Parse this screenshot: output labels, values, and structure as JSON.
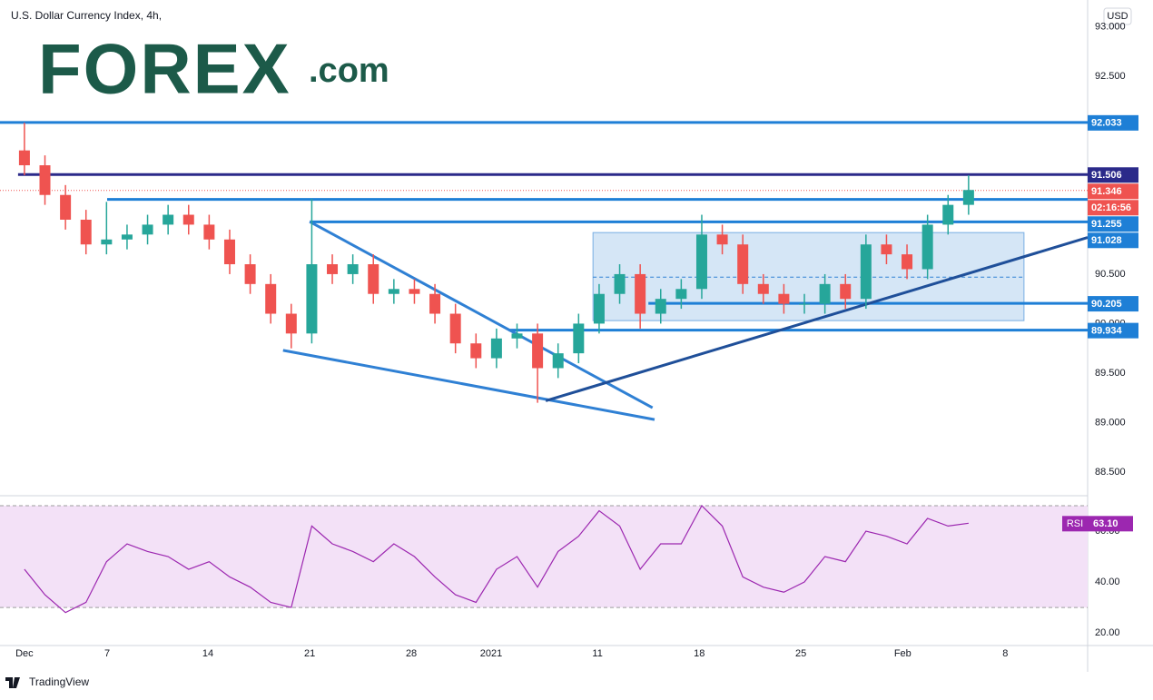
{
  "header": {
    "title": "U.S. Dollar Currency Index, 4h,",
    "currency": "USD",
    "logo": {
      "main": "FOREX",
      "suffix": ".com"
    }
  },
  "footer": {
    "brand": "TradingView"
  },
  "chart_data": [
    {
      "type": "candlestick",
      "x": [
        0,
        1,
        2,
        3,
        4,
        5,
        6,
        7,
        8,
        9,
        10,
        11,
        12,
        13,
        14,
        15,
        16,
        17,
        18,
        19,
        20,
        21,
        22,
        23,
        24,
        25,
        26,
        27,
        28,
        29,
        30,
        31,
        32,
        33,
        34,
        35,
        36,
        37,
        38,
        39,
        40,
        41,
        42,
        43,
        44,
        45,
        46
      ],
      "open": [
        91.75,
        91.6,
        91.3,
        91.05,
        90.8,
        90.85,
        90.9,
        91.0,
        91.1,
        91.0,
        90.85,
        90.6,
        90.4,
        90.1,
        89.9,
        90.6,
        90.5,
        90.6,
        90.3,
        90.35,
        90.3,
        90.1,
        89.8,
        89.65,
        89.85,
        89.9,
        89.55,
        89.7,
        90.0,
        90.3,
        90.5,
        90.1,
        90.25,
        90.35,
        90.9,
        90.8,
        90.4,
        90.3,
        90.2,
        90.2,
        90.4,
        90.25,
        90.8,
        90.7,
        90.55,
        91.0,
        91.2
      ],
      "high": [
        92.03,
        91.7,
        91.4,
        91.15,
        91.23,
        91.0,
        91.1,
        91.2,
        91.2,
        91.1,
        90.95,
        90.7,
        90.5,
        90.2,
        91.26,
        90.7,
        90.7,
        90.7,
        90.45,
        90.45,
        90.4,
        90.2,
        89.9,
        89.95,
        90.0,
        90.0,
        89.8,
        90.1,
        90.4,
        90.6,
        90.6,
        90.35,
        90.45,
        91.1,
        91.0,
        90.9,
        90.5,
        90.4,
        90.3,
        90.5,
        90.5,
        90.9,
        90.9,
        90.8,
        91.1,
        91.3,
        91.5
      ],
      "low": [
        91.5,
        91.2,
        90.95,
        90.7,
        90.7,
        90.75,
        90.8,
        90.9,
        90.9,
        90.75,
        90.5,
        90.3,
        90.0,
        89.75,
        89.8,
        90.4,
        90.4,
        90.2,
        90.2,
        90.2,
        90.0,
        89.7,
        89.55,
        89.55,
        89.75,
        89.2,
        89.45,
        89.6,
        89.9,
        90.2,
        89.95,
        90.0,
        90.15,
        90.25,
        90.7,
        90.3,
        90.2,
        90.1,
        90.1,
        90.1,
        90.15,
        90.15,
        90.6,
        90.45,
        90.45,
        90.9,
        91.1
      ],
      "close": [
        91.6,
        91.3,
        91.05,
        90.8,
        90.85,
        90.9,
        91.0,
        91.1,
        91.0,
        90.85,
        90.6,
        90.4,
        90.1,
        89.9,
        90.6,
        90.5,
        90.6,
        90.3,
        90.35,
        90.3,
        90.1,
        89.8,
        89.65,
        89.85,
        89.9,
        89.55,
        89.7,
        90.0,
        90.3,
        90.5,
        90.1,
        90.25,
        90.35,
        90.9,
        90.8,
        90.4,
        90.3,
        90.2,
        90.2,
        90.4,
        90.25,
        90.8,
        90.7,
        90.55,
        91.0,
        91.2,
        91.35
      ],
      "up_color": "#26a69a",
      "down_color": "#ef5350",
      "xlim": [
        -1.19,
        51.8
      ],
      "ylim": [
        88.27,
        93.27
      ],
      "yticks": [
        {
          "value": 93,
          "label": "93.000"
        },
        {
          "value": 92.5,
          "label": "92.500"
        },
        {
          "value": 90.5,
          "label": "90.500"
        },
        {
          "value": 90,
          "label": "90.000"
        },
        {
          "value": 89.5,
          "label": "89.500"
        },
        {
          "value": 89,
          "label": "89.000"
        },
        {
          "value": 88.5,
          "label": "88.500"
        }
      ],
      "levels": [
        {
          "value": 92.033,
          "from": -1.19,
          "color": "#1e7fd6"
        },
        {
          "value": 91.506,
          "from": -0.31,
          "color": "#2b2a8a"
        },
        {
          "value": 91.255,
          "from": 4.03,
          "color": "#1e7fd6"
        },
        {
          "value": 91.028,
          "from": 13.9,
          "color": "#1e7fd6"
        },
        {
          "value": 90.205,
          "from": 30.4,
          "color": "#1e7fd6"
        },
        {
          "value": 89.934,
          "from": 23.6,
          "color": "#1e7fd6"
        }
      ],
      "last_price": {
        "value": 91.346,
        "countdown": "02:16:56",
        "color": "#ef5350"
      },
      "trendlines": [
        {
          "x": [
            13.9,
            30.6
          ],
          "y": [
            91.03,
            89.15
          ],
          "color": "#2f80d4"
        },
        {
          "x": [
            12.6,
            30.7
          ],
          "y": [
            89.73,
            89.03
          ],
          "color": "#2f80d4"
        },
        {
          "x": [
            25.4,
            51.8
          ],
          "y": [
            89.22,
            90.87
          ],
          "color": "#1f4f99"
        }
      ],
      "range_box": {
        "x": [
          27.7,
          48.7
        ],
        "y": [
          90.92,
          90.03
        ],
        "mid": 90.47,
        "color": "#2f80d4"
      }
    },
    {
      "type": "line",
      "name": "RSI",
      "color": "#9c27b0",
      "x": [
        0,
        1,
        2,
        3,
        4,
        5,
        6,
        7,
        8,
        9,
        10,
        11,
        12,
        13,
        14,
        15,
        16,
        17,
        18,
        19,
        20,
        21,
        22,
        23,
        24,
        25,
        26,
        27,
        28,
        29,
        30,
        31,
        32,
        33,
        34,
        35,
        36,
        37,
        38,
        39,
        40,
        41,
        42,
        43,
        44,
        45,
        46
      ],
      "values": [
        45,
        35,
        28,
        32,
        48,
        55,
        52,
        50,
        45,
        48,
        42,
        38,
        32,
        30,
        62,
        55,
        52,
        48,
        55,
        50,
        42,
        35,
        32,
        45,
        50,
        38,
        52,
        58,
        68,
        62,
        45,
        55,
        55,
        70,
        62,
        42,
        38,
        36,
        40,
        50,
        48,
        60,
        58,
        55,
        65,
        62,
        63.1
      ],
      "current": {
        "value": 63.1,
        "label": "63.10"
      },
      "bands": [
        30,
        70
      ],
      "xlim": [
        -1.19,
        51.8
      ],
      "ylim": [
        15.4,
        73.2
      ],
      "yticks": [
        {
          "value": 20,
          "label": "20.00"
        },
        {
          "value": 40,
          "label": "40.00"
        },
        {
          "value": 60,
          "label": "60.00"
        }
      ],
      "xticks": [
        {
          "value": 0,
          "label": "Dec"
        },
        {
          "value": 4.03,
          "label": "7"
        },
        {
          "value": 8.94,
          "label": "14"
        },
        {
          "value": 13.9,
          "label": "21"
        },
        {
          "value": 18.85,
          "label": "28"
        },
        {
          "value": 22.74,
          "label": "2021"
        },
        {
          "value": 27.92,
          "label": "11"
        },
        {
          "value": 32.88,
          "label": "18"
        },
        {
          "value": 37.83,
          "label": "25"
        },
        {
          "value": 42.79,
          "label": "Feb"
        },
        {
          "value": 47.79,
          "label": "8"
        }
      ]
    }
  ]
}
